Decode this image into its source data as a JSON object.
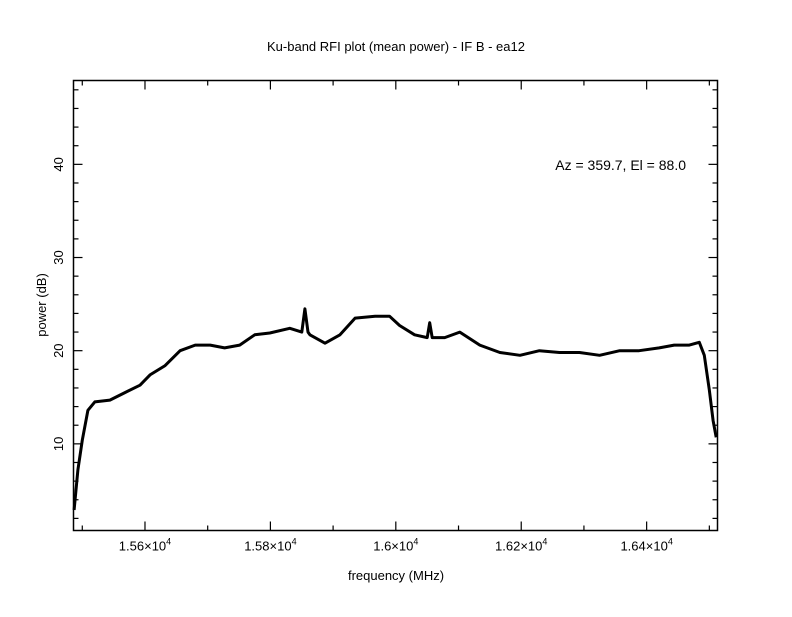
{
  "chart_data": {
    "type": "line",
    "title": "Ku-band RFI plot (mean power) - IF B - ea12",
    "xlabel": "frequency (MHz)",
    "ylabel": "power (dB)",
    "annotation": "Az = 359.7, El = 88.0",
    "xlim": [
      15486,
      16513
    ],
    "ylim": [
      0.7,
      49
    ],
    "x_ticks": [
      15600,
      15800,
      16000,
      16200,
      16400
    ],
    "x_tick_labels": [
      {
        "mant": "1.56×10",
        "exp": "4"
      },
      {
        "mant": "1.58×10",
        "exp": "4"
      },
      {
        "mant": "1.6×10",
        "exp": "4"
      },
      {
        "mant": "1.62×10",
        "exp": "4"
      },
      {
        "mant": "1.64×10",
        "exp": "4"
      }
    ],
    "x_minor_step": 100,
    "y_ticks": [
      10,
      20,
      30,
      40
    ],
    "y_tick_labels": [
      "10",
      "20",
      "30",
      "40"
    ],
    "y_minor_step": 2,
    "grid": false,
    "series": [
      {
        "name": "mean power",
        "color": "#000000",
        "x": [
          15487,
          15493,
          15500,
          15509,
          15520,
          15544,
          15568,
          15592,
          15608,
          15632,
          15656,
          15680,
          15704,
          15727,
          15751,
          15775,
          15799,
          15831,
          15850,
          15855,
          15860,
          15863,
          15887,
          15911,
          15935,
          15967,
          15990,
          16006,
          16030,
          16050,
          16054,
          16058,
          16078,
          16102,
          16134,
          16166,
          16198,
          16229,
          16261,
          16293,
          16325,
          16357,
          16388,
          16420,
          16444,
          16468,
          16484,
          16492,
          16500,
          16506,
          16511
        ],
        "y": [
          2.9,
          7.2,
          10.4,
          13.6,
          14.5,
          14.7,
          15.5,
          16.3,
          17.4,
          18.4,
          20.0,
          20.6,
          20.6,
          20.3,
          20.6,
          21.7,
          21.9,
          22.4,
          22.0,
          24.5,
          22.0,
          21.7,
          20.8,
          21.7,
          23.5,
          23.7,
          23.7,
          22.7,
          21.7,
          21.4,
          23.0,
          21.4,
          21.4,
          22.0,
          20.6,
          19.8,
          19.5,
          20.0,
          19.8,
          19.8,
          19.5,
          20.0,
          20.0,
          20.3,
          20.6,
          20.6,
          20.9,
          19.5,
          15.8,
          12.5,
          10.7
        ]
      }
    ]
  }
}
